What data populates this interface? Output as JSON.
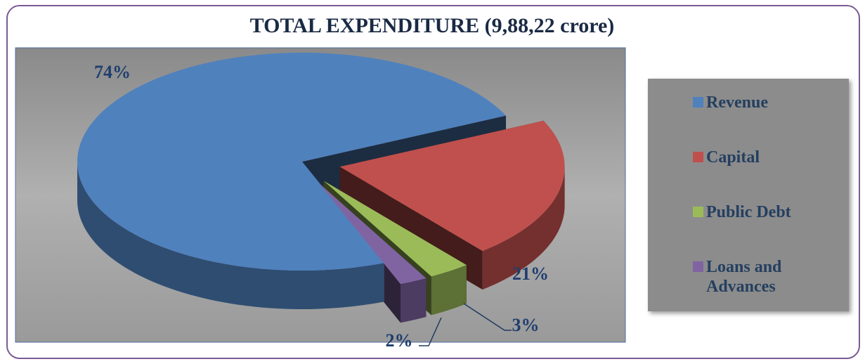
{
  "chart_data": {
    "type": "pie",
    "title": "TOTAL EXPENDITURE (9,88,22 crore)",
    "categories": [
      "Revenue",
      "Capital",
      "Public Debt",
      "Loans and Advances"
    ],
    "values": [
      74,
      21,
      3,
      2
    ],
    "value_labels": [
      "74%",
      "21%",
      "3%",
      "2%"
    ],
    "colors": [
      "#4f81bd",
      "#c0504d",
      "#9bbb59",
      "#8064a2"
    ],
    "legend": "right"
  }
}
